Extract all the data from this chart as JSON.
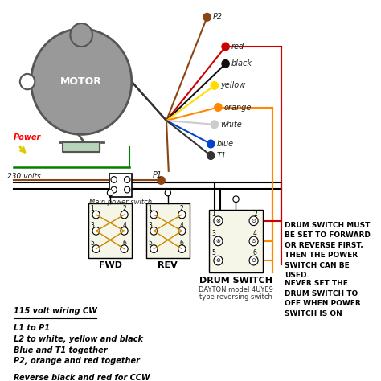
{
  "bg_color": "#ffffff",
  "motor_color": "#999999",
  "motor_border": "#555555",
  "motor_label": "MOTOR",
  "power_label": "Power",
  "voltage_label": "230 volts",
  "main_switch_label": "Main power switch",
  "fwd_label": "FWD",
  "rev_label": "REV",
  "drum_switch_label": "DRUM SWITCH",
  "drum_model": "DAYTON model 4UYE9",
  "drum_type": "type reversing switch",
  "note1": "DRUM SWITCH MUST\nBE SET TO FORWARD\nOR REVERSE FIRST,\nTHEN THE POWER\nSWITCH CAN BE\nUSED.",
  "note2": "NEVER SET THE\nDRUM SWITCH TO\nOFF WHEN POWER\nSWITCH IS ON",
  "bottom_title": "115 volt wiring CW",
  "bottom_lines": [
    "L1 to P1",
    "L2 to white, yellow and black",
    "Blue and T1 together",
    "P2, orange and red together"
  ],
  "bottom_note": "Reverse black and red for CCW",
  "wire_colors": [
    "#8B4513",
    "#cc0000",
    "#111111",
    "#ffdd00",
    "#ff8800",
    "#cccccc",
    "#0044cc",
    "#333333"
  ],
  "wire_names": [
    "P2",
    "red",
    "black",
    "yellow",
    "orange",
    "white",
    "blue",
    "T1"
  ]
}
